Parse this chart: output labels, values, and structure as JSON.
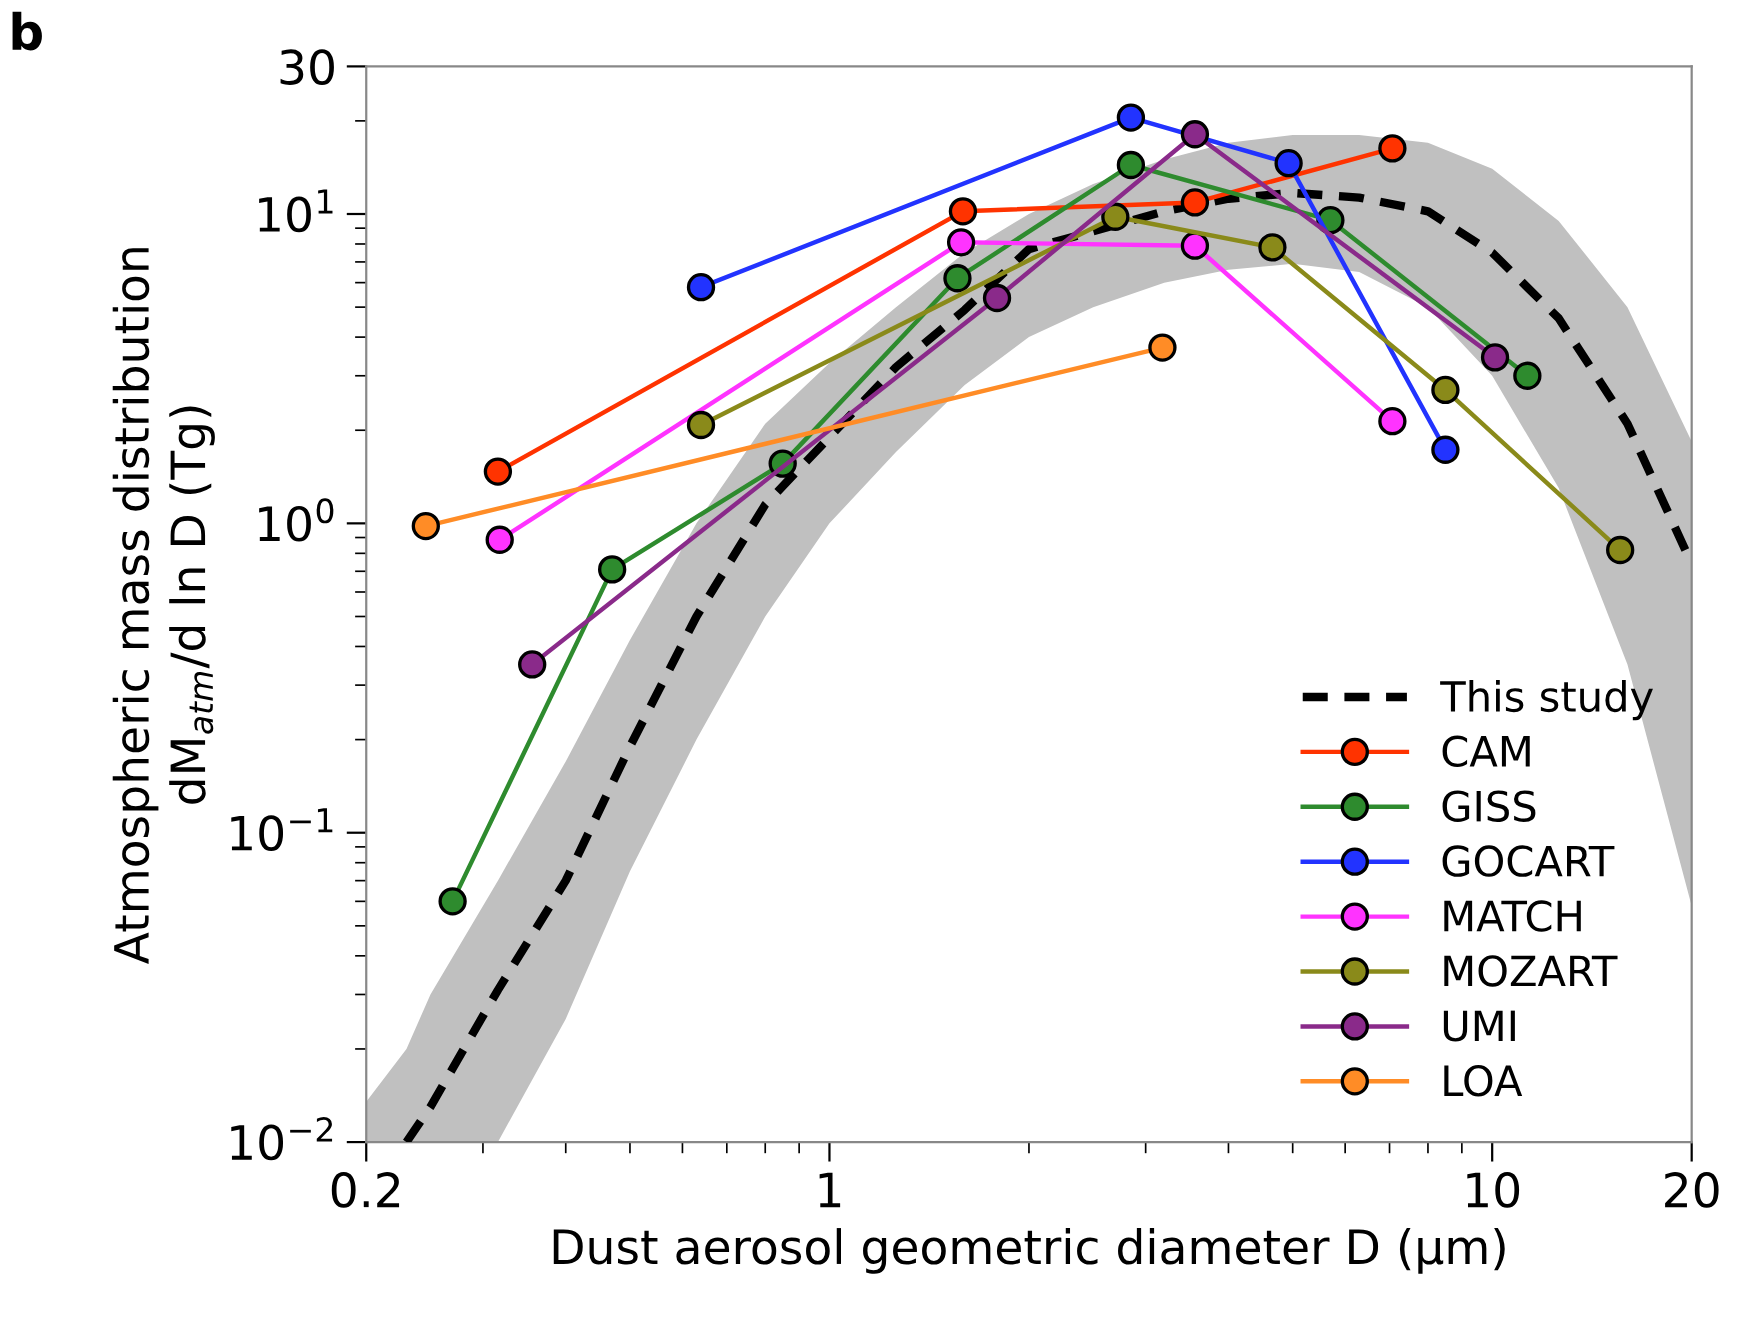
{
  "chart_data": {
    "type": "line",
    "title": "b",
    "xlabel": "Dust aerosol geometric diameter D (μm)",
    "ylabel": "Atmospheric mass distribution\ndM$_{atm}$/d ln D (Tg)",
    "log": "xy",
    "xlim": [
      0.2,
      20
    ],
    "ylim": [
      0.01,
      30
    ],
    "xticks": [
      0.2,
      1,
      10,
      20
    ],
    "yticks": [
      {
        "value": 0.01,
        "label": "10$^{−2}$"
      },
      {
        "value": 0.1,
        "label": "10$^{−1}$"
      },
      {
        "value": 1,
        "label": "10$^{0}$"
      },
      {
        "value": 10,
        "label": "10$^{1}$"
      },
      30
    ],
    "grid": false,
    "legend": "bottom right",
    "series": [
      {
        "name": "This study",
        "color": "#000000",
        "line_style": "dashed",
        "marker": "none",
        "x": [
          0.2,
          0.23,
          0.25,
          0.316,
          0.4,
          0.5,
          0.63,
          0.8,
          1,
          1.26,
          1.6,
          2,
          2.5,
          3.2,
          4,
          5,
          6.3,
          8,
          10,
          12.6,
          16,
          20
        ],
        "values": [
          null,
          0.01,
          0.013,
          0.031,
          0.07,
          0.19,
          0.5,
          1.15,
          1.9,
          3.2,
          4.9,
          7.7,
          8.8,
          10.2,
          11.2,
          11.7,
          11.3,
          10.2,
          7.5,
          4.6,
          2.1,
          0.74
        ],
        "upper": [
          0.0135,
          0.02,
          0.03,
          0.07,
          0.17,
          0.42,
          1.0,
          2.1,
          3.3,
          5.0,
          7.5,
          10,
          12.5,
          15,
          17,
          18,
          18,
          17,
          14,
          9.5,
          5,
          1.84
        ],
        "lower": [
          0.01,
          0.01,
          0.01,
          0.01,
          0.025,
          0.075,
          0.2,
          0.5,
          1.0,
          1.7,
          2.8,
          4.0,
          5.0,
          6.0,
          6.6,
          6.9,
          6.5,
          5.0,
          3.0,
          1.3,
          0.35,
          0.058
        ]
      },
      {
        "name": "CAM",
        "color": "#ff3300",
        "marker": "circle",
        "line_style": "solid",
        "x": [
          0.316,
          1.59,
          3.56,
          7.07
        ],
        "values": [
          1.47,
          10.2,
          10.9,
          16.3
        ]
      },
      {
        "name": "GISS",
        "color": "#2e8b2e",
        "marker": "circle",
        "line_style": "solid",
        "x": [
          0.27,
          0.47,
          0.85,
          1.56,
          2.85,
          5.7,
          11.3
        ],
        "values": [
          0.06,
          0.71,
          1.56,
          6.2,
          14.4,
          9.55,
          3.0
        ]
      },
      {
        "name": "GOCART",
        "color": "#2233ff",
        "marker": "circle",
        "line_style": "solid",
        "x": [
          0.64,
          2.85,
          4.93,
          8.5
        ],
        "values": [
          5.8,
          20.5,
          14.6,
          1.73
        ]
      },
      {
        "name": "MATCH",
        "color": "#ff33ff",
        "marker": "circle",
        "line_style": "solid",
        "x": [
          0.318,
          1.58,
          3.56,
          7.07
        ],
        "values": [
          0.885,
          8.1,
          7.9,
          2.14
        ]
      },
      {
        "name": "MOZART",
        "color": "#8a8a1a",
        "marker": "circle",
        "line_style": "solid",
        "x": [
          0.64,
          2.7,
          4.66,
          8.5,
          15.6
        ],
        "values": [
          2.08,
          9.8,
          7.8,
          2.7,
          0.82
        ]
      },
      {
        "name": "UMI",
        "color": "#8a2a8a",
        "marker": "circle",
        "line_style": "solid",
        "x": [
          0.356,
          1.79,
          3.56,
          10.1
        ],
        "values": [
          0.35,
          5.35,
          18.1,
          3.44
        ]
      },
      {
        "name": "LOA",
        "color": "#ff8c26",
        "marker": "circle",
        "line_style": "solid",
        "x": [
          0.246,
          3.18
        ],
        "values": [
          0.98,
          3.7
        ]
      }
    ]
  }
}
